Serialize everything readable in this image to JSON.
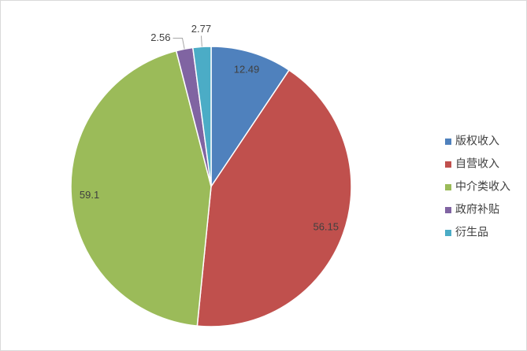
{
  "chart_data": {
    "type": "pie",
    "categories": [
      "版权收入",
      "自营收入",
      "中介类收入",
      "政府补贴",
      "衍生品"
    ],
    "values": [
      12.49,
      56.15,
      59.1,
      2.56,
      2.77
    ],
    "colors": [
      "#4f81bd",
      "#c0504d",
      "#9bbb59",
      "#8064a2",
      "#4bacc6"
    ],
    "legend": "right"
  }
}
